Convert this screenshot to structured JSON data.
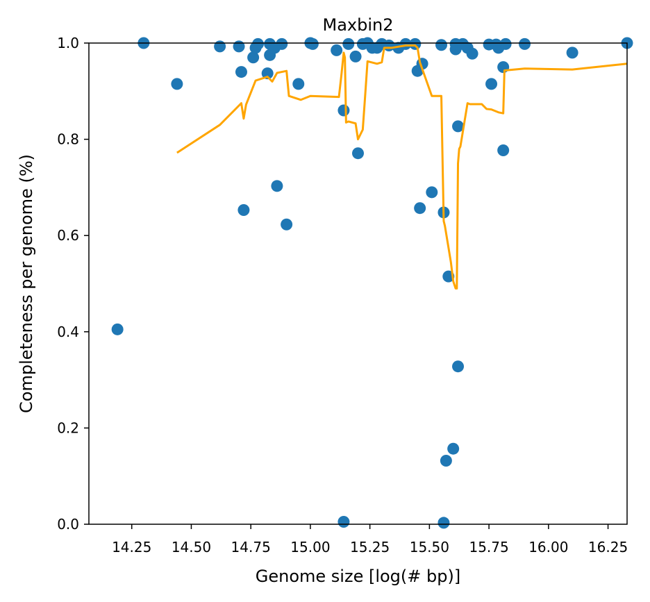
{
  "chart_data": {
    "type": "scatter",
    "title": "Maxbin2",
    "xlabel": "Genome size [log(# bp)]",
    "ylabel": "Completeness per genome (%)",
    "xlim": [
      14.07,
      16.33
    ],
    "ylim": [
      0.0,
      1.0
    ],
    "x_ticks": [
      14.25,
      14.5,
      14.75,
      15.0,
      15.25,
      15.5,
      15.75,
      16.0,
      16.25
    ],
    "x_tick_labels": [
      "14.25",
      "14.50",
      "14.75",
      "15.00",
      "15.25",
      "15.50",
      "15.75",
      "16.00",
      "16.25"
    ],
    "y_ticks": [
      0.0,
      0.2,
      0.4,
      0.6,
      0.8,
      1.0
    ],
    "y_tick_labels": [
      "0.0",
      "0.2",
      "0.4",
      "0.6",
      "0.8",
      "1.0"
    ],
    "grid": false,
    "colors": {
      "points": "#1f77b4",
      "line": "#ffa500"
    },
    "series": [
      {
        "kind": "scatter",
        "x": [
          14.19,
          14.3,
          14.44,
          14.62,
          14.7,
          14.71,
          14.72,
          14.76,
          14.77,
          14.78,
          14.82,
          14.83,
          14.83,
          14.85,
          14.86,
          14.88,
          14.9,
          14.95,
          15.0,
          15.01,
          15.11,
          15.14,
          15.14,
          15.16,
          15.19,
          15.2,
          15.22,
          15.24,
          15.26,
          15.28,
          15.3,
          15.33,
          15.37,
          15.4,
          15.44,
          15.45,
          15.46,
          15.47,
          15.51,
          15.55,
          15.56,
          15.56,
          15.57,
          15.58,
          15.6,
          15.61,
          15.61,
          15.62,
          15.62,
          15.64,
          15.66,
          15.68,
          15.75,
          15.76,
          15.78,
          15.79,
          15.81,
          15.81,
          15.82,
          15.9,
          16.1,
          16.33
        ],
        "y": [
          0.405,
          1.0,
          0.915,
          0.993,
          0.993,
          0.94,
          0.653,
          0.97,
          0.99,
          0.998,
          0.937,
          0.975,
          0.998,
          0.99,
          0.703,
          0.998,
          0.623,
          0.915,
          1.0,
          0.998,
          0.985,
          0.86,
          0.005,
          0.998,
          0.972,
          0.771,
          0.998,
          1.0,
          0.99,
          0.99,
          0.998,
          0.995,
          0.99,
          0.998,
          0.998,
          0.942,
          0.657,
          0.957,
          0.69,
          0.996,
          0.648,
          0.003,
          0.132,
          0.515,
          0.157,
          0.987,
          0.998,
          0.827,
          0.328,
          0.998,
          0.99,
          0.978,
          0.997,
          0.915,
          0.997,
          0.99,
          0.95,
          0.777,
          0.998,
          0.998,
          0.98,
          1.0
        ]
      },
      {
        "kind": "line",
        "x": [
          14.44,
          14.62,
          14.68,
          14.71,
          14.72,
          14.73,
          14.77,
          14.82,
          14.84,
          14.86,
          14.88,
          14.9,
          14.91,
          14.96,
          15.0,
          15.12,
          15.13,
          15.14,
          15.145,
          15.15,
          15.16,
          15.19,
          15.2,
          15.22,
          15.23,
          15.24,
          15.28,
          15.3,
          15.31,
          15.34,
          15.4,
          15.43,
          15.44,
          15.45,
          15.46,
          15.51,
          15.55,
          15.56,
          15.565,
          15.57,
          15.58,
          15.59,
          15.6,
          15.61,
          15.615,
          15.62,
          15.625,
          15.63,
          15.66,
          15.67,
          15.72,
          15.74,
          15.76,
          15.79,
          15.81,
          15.815,
          15.9,
          16.1,
          16.33
        ],
        "y": [
          0.772,
          0.83,
          0.86,
          0.875,
          0.843,
          0.872,
          0.922,
          0.93,
          0.92,
          0.938,
          0.94,
          0.942,
          0.89,
          0.882,
          0.89,
          0.888,
          0.932,
          0.98,
          0.97,
          0.835,
          0.837,
          0.833,
          0.8,
          0.82,
          0.89,
          0.962,
          0.957,
          0.96,
          0.99,
          0.99,
          0.995,
          0.995,
          0.995,
          0.99,
          0.96,
          0.89,
          0.89,
          0.63,
          0.62,
          0.605,
          0.575,
          0.545,
          0.505,
          0.49,
          0.49,
          0.75,
          0.78,
          0.785,
          0.875,
          0.873,
          0.873,
          0.863,
          0.862,
          0.856,
          0.854,
          0.943,
          0.947,
          0.945,
          0.957
        ]
      }
    ]
  }
}
